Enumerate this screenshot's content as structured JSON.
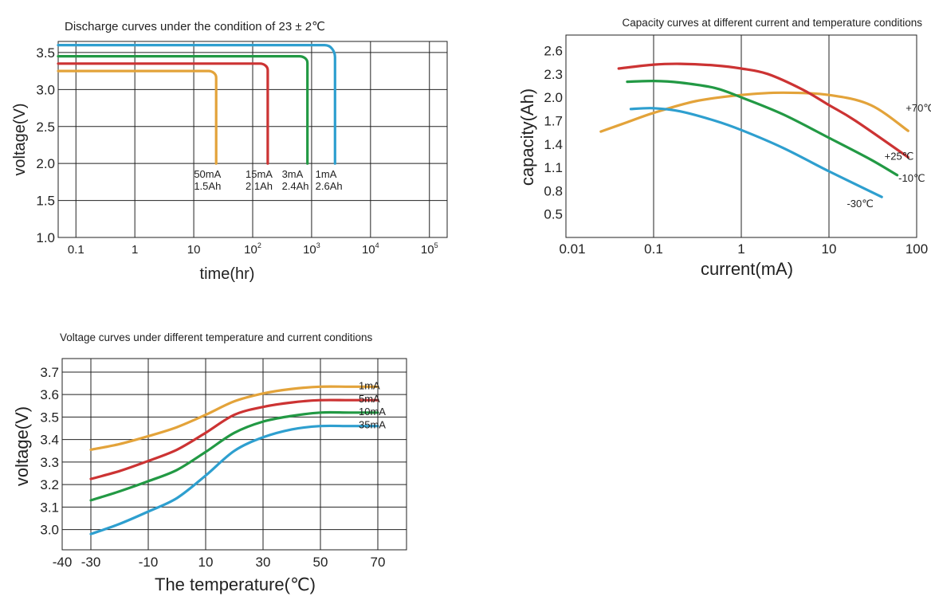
{
  "colors": {
    "orange": "#e3a33a",
    "red": "#cc3333",
    "green": "#229944",
    "blue": "#2e9fcf",
    "grid": "#222222"
  },
  "chart_data": [
    {
      "type": "line",
      "title": "Discharge curves under the condition of 23 ± 2℃",
      "xlabel": "time(hr)",
      "ylabel": "voltage(V)",
      "xscale": "log",
      "xlim": [
        0.05,
        200000
      ],
      "ylim": [
        1.0,
        3.65
      ],
      "grid": true,
      "x_ticks": [
        {
          "v": 0.1,
          "label": "0.1",
          "sup": ""
        },
        {
          "v": 1,
          "label": "1",
          "sup": ""
        },
        {
          "v": 10,
          "label": "10",
          "sup": ""
        },
        {
          "v": 100,
          "label": "10",
          "sup": "2"
        },
        {
          "v": 1000,
          "label": "10",
          "sup": "3"
        },
        {
          "v": 10000,
          "label": "10",
          "sup": "4"
        },
        {
          "v": 100000,
          "label": "10",
          "sup": "5"
        }
      ],
      "y_ticks": [
        "1.0",
        "1.5",
        "2.0",
        "2.5",
        "3.0",
        "3.5"
      ],
      "series": [
        {
          "color": "orange",
          "x": [
            0.05,
            20,
            24,
            24
          ],
          "y": [
            3.25,
            3.25,
            3.2,
            2.0
          ],
          "label_lines": [
            "50mA",
            "1.5Ah"
          ],
          "label_x": 20,
          "label_y": 2.0
        },
        {
          "color": "red",
          "x": [
            0.05,
            150,
            180,
            180
          ],
          "y": [
            3.35,
            3.35,
            3.3,
            2.0
          ],
          "label_lines": [
            "15mA",
            "2.1Ah"
          ],
          "label_x": 150,
          "label_y": 2.0
        },
        {
          "color": "green",
          "x": [
            0.05,
            700,
            850,
            850
          ],
          "y": [
            3.45,
            3.45,
            3.4,
            2.0
          ],
          "label_lines": [
            "3mA",
            "2.4Ah"
          ],
          "label_x": 620,
          "label_y": 2.0
        },
        {
          "color": "blue",
          "x": [
            0.05,
            2000,
            2500,
            2500
          ],
          "y": [
            3.6,
            3.6,
            3.5,
            2.0
          ],
          "label_lines": [
            "1mA",
            "2.6Ah"
          ],
          "label_x": 2300,
          "label_y": 2.0
        }
      ]
    },
    {
      "type": "line",
      "title": "Capacity curves at different current and temperature conditions",
      "xlabel": "current(mA)",
      "ylabel": "capacity(Ah)",
      "xscale": "log",
      "xlim": [
        0.01,
        100
      ],
      "ylim": [
        0.2,
        2.8
      ],
      "grid": true,
      "x_ticks": [
        "0.01",
        "0.1",
        "1",
        "10",
        "100"
      ],
      "y_ticks": [
        "0.5",
        "0.8",
        "1.1",
        "1.4",
        "1.7",
        "2.0",
        "2.3",
        "2.6"
      ],
      "series": [
        {
          "name": "+70℃",
          "color": "orange",
          "x": [
            0.025,
            0.05,
            0.1,
            0.3,
            1,
            3,
            10,
            30,
            80
          ],
          "y": [
            1.56,
            1.68,
            1.8,
            1.95,
            2.03,
            2.06,
            2.03,
            1.9,
            1.57
          ],
          "label_x": 75,
          "label_y": 1.87
        },
        {
          "name": "+25℃",
          "color": "red",
          "x": [
            0.04,
            0.1,
            0.2,
            0.5,
            1,
            2,
            5,
            10,
            20,
            80
          ],
          "y": [
            2.37,
            2.42,
            2.43,
            2.41,
            2.37,
            2.3,
            2.1,
            1.9,
            1.7,
            1.23
          ],
          "label_x": 43,
          "label_y": 1.25
        },
        {
          "name": "-10℃",
          "color": "green",
          "x": [
            0.05,
            0.1,
            0.2,
            0.5,
            1,
            3,
            10,
            30,
            60
          ],
          "y": [
            2.2,
            2.21,
            2.19,
            2.12,
            2.0,
            1.78,
            1.48,
            1.2,
            1.0
          ],
          "label_x": 62,
          "label_y": 0.97
        },
        {
          "name": "-30℃",
          "color": "blue",
          "x": [
            0.055,
            0.1,
            0.2,
            0.5,
            1,
            3,
            10,
            40
          ],
          "y": [
            1.85,
            1.86,
            1.82,
            1.7,
            1.58,
            1.35,
            1.05,
            0.72
          ],
          "label_x": 16,
          "label_y": 0.64
        }
      ]
    },
    {
      "type": "line",
      "title": "Voltage curves under different temperature and current conditions",
      "xlabel": "The temperature(℃)",
      "ylabel": "voltage(V)",
      "xlim": [
        -40,
        80
      ],
      "ylim": [
        2.91,
        3.76
      ],
      "grid": true,
      "x_ticks": [
        "-40",
        "-30",
        "-10",
        "10",
        "30",
        "50",
        "70"
      ],
      "y_ticks": [
        "3.0",
        "3.1",
        "3.2",
        "3.3",
        "3.4",
        "3.5",
        "3.6",
        "3.7"
      ],
      "series": [
        {
          "name": "1mA",
          "color": "orange",
          "x": [
            -30,
            -20,
            -10,
            0,
            10,
            20,
            30,
            40,
            50,
            60,
            70
          ],
          "y": [
            3.355,
            3.38,
            3.415,
            3.455,
            3.51,
            3.57,
            3.605,
            3.625,
            3.635,
            3.635,
            3.635
          ]
        },
        {
          "name": "5mA",
          "color": "red",
          "x": [
            -30,
            -20,
            -10,
            0,
            10,
            20,
            30,
            40,
            50,
            60,
            70
          ],
          "y": [
            3.225,
            3.26,
            3.305,
            3.355,
            3.43,
            3.51,
            3.545,
            3.565,
            3.575,
            3.575,
            3.575
          ]
        },
        {
          "name": "10mA",
          "color": "green",
          "x": [
            -30,
            -20,
            -10,
            0,
            10,
            20,
            30,
            40,
            50,
            60,
            70
          ],
          "y": [
            3.13,
            3.17,
            3.215,
            3.265,
            3.345,
            3.43,
            3.48,
            3.505,
            3.52,
            3.52,
            3.52
          ]
        },
        {
          "name": "35mA",
          "color": "blue",
          "x": [
            -30,
            -20,
            -10,
            0,
            10,
            20,
            30,
            40,
            50,
            60,
            70
          ],
          "y": [
            2.98,
            3.025,
            3.08,
            3.14,
            3.24,
            3.35,
            3.41,
            3.445,
            3.46,
            3.46,
            3.46
          ]
        }
      ]
    }
  ]
}
